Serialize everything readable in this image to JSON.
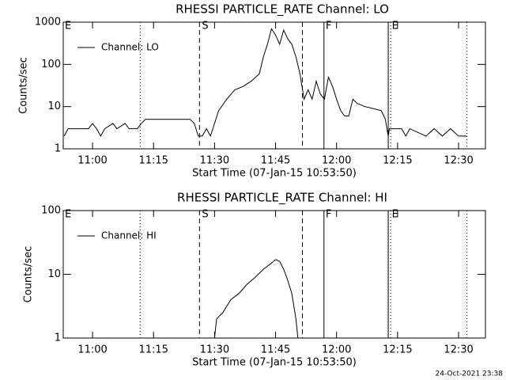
{
  "chart_data": [
    {
      "type": "line",
      "title": "RHESSI PARTICLE_RATE Channel: LO",
      "xlabel": "Start Time (07-Jan-15 10:53:50)",
      "ylabel": "Counts/sec",
      "log_y": true,
      "ylim": [
        1,
        1000
      ],
      "yticks": [
        1,
        10,
        100,
        1000
      ],
      "xlim": [
        652.8,
        756.6
      ],
      "xticks": [
        {
          "value": 660,
          "label": "11:00"
        },
        {
          "value": 675,
          "label": "11:15"
        },
        {
          "value": 690,
          "label": "11:30"
        },
        {
          "value": 705,
          "label": "11:45"
        },
        {
          "value": 720,
          "label": "12:00"
        },
        {
          "value": 735,
          "label": "12:15"
        },
        {
          "value": 750,
          "label": "12:30"
        }
      ],
      "legend": "top-left",
      "vlines": [
        {
          "x": 671.7,
          "style": "dotted"
        },
        {
          "x": 686.3,
          "style": "dashed"
        },
        {
          "x": 711.6,
          "style": "dashed"
        },
        {
          "x": 716.9,
          "style": "solid"
        },
        {
          "x": 732.7,
          "style": "solid"
        },
        {
          "x": 733.3,
          "style": "dotted"
        },
        {
          "x": 752.0,
          "style": "dotted"
        }
      ],
      "flags": [
        {
          "label": "E",
          "x": 653.2
        },
        {
          "label": "S",
          "x": 686.9
        },
        {
          "label": "F",
          "x": 717.3
        },
        {
          "label": "E",
          "x": 733.6
        }
      ],
      "series": [
        {
          "name": "Channel: LO",
          "color": "#000000",
          "x": [
            653,
            654,
            657,
            659,
            660,
            661,
            662,
            663,
            665,
            666,
            668,
            669,
            671,
            672,
            673,
            676,
            680,
            684,
            685,
            686,
            687,
            688,
            689,
            690,
            691,
            693,
            695,
            697,
            699,
            701,
            702,
            703,
            704,
            705,
            706,
            707,
            708,
            709,
            710,
            711,
            712,
            713,
            714,
            715,
            716,
            717,
            718,
            719,
            720,
            721,
            722,
            723,
            724,
            725,
            727,
            729,
            731,
            732,
            732.7,
            733,
            736,
            737,
            738,
            742,
            744,
            746,
            748,
            750,
            752
          ],
          "values": [
            2,
            3,
            3,
            3,
            4,
            3,
            2,
            3,
            4,
            3,
            4,
            3,
            3,
            4,
            5,
            5,
            5,
            5,
            4,
            2,
            2,
            3,
            2,
            4,
            8,
            15,
            25,
            30,
            40,
            60,
            150,
            300,
            700,
            500,
            300,
            650,
            400,
            300,
            150,
            60,
            15,
            25,
            15,
            40,
            20,
            15,
            50,
            30,
            15,
            8,
            6,
            6,
            15,
            12,
            10,
            9,
            8,
            5,
            2,
            3,
            3,
            2,
            3,
            2,
            3,
            2,
            3,
            2,
            2
          ]
        }
      ]
    },
    {
      "type": "line",
      "title": "RHESSI PARTICLE_RATE Channel: HI",
      "xlabel": "Start Time (07-Jan-15 10:53:50)",
      "ylabel": "Counts/sec",
      "log_y": true,
      "ylim": [
        1,
        100
      ],
      "yticks": [
        1,
        10,
        100
      ],
      "xlim": [
        652.8,
        756.6
      ],
      "xticks": [
        {
          "value": 660,
          "label": "11:00"
        },
        {
          "value": 675,
          "label": "11:15"
        },
        {
          "value": 690,
          "label": "11:30"
        },
        {
          "value": 705,
          "label": "11:45"
        },
        {
          "value": 720,
          "label": "12:00"
        },
        {
          "value": 735,
          "label": "12:15"
        },
        {
          "value": 750,
          "label": "12:30"
        }
      ],
      "legend": "top-left",
      "vlines": [
        {
          "x": 671.7,
          "style": "dotted"
        },
        {
          "x": 686.3,
          "style": "dashed"
        },
        {
          "x": 711.6,
          "style": "dashed"
        },
        {
          "x": 716.9,
          "style": "solid"
        },
        {
          "x": 732.7,
          "style": "solid"
        },
        {
          "x": 733.3,
          "style": "dotted"
        },
        {
          "x": 752.0,
          "style": "dotted"
        }
      ],
      "flags": [
        {
          "label": "E",
          "x": 653.2
        },
        {
          "label": "S",
          "x": 686.9
        },
        {
          "label": "F",
          "x": 717.3
        },
        {
          "label": "E",
          "x": 733.6
        }
      ],
      "series": [
        {
          "name": "Channel: HI",
          "color": "#000000",
          "x": [
            690,
            690.5,
            692,
            694,
            696,
            698,
            700,
            702,
            704,
            705,
            706,
            707,
            708,
            709,
            710,
            710.5
          ],
          "values": [
            1,
            2,
            2.5,
            4,
            5,
            7,
            9,
            12,
            15,
            17,
            16,
            12,
            8,
            5,
            2,
            1
          ]
        }
      ]
    }
  ],
  "footer": "24-Oct-2021 23:38"
}
